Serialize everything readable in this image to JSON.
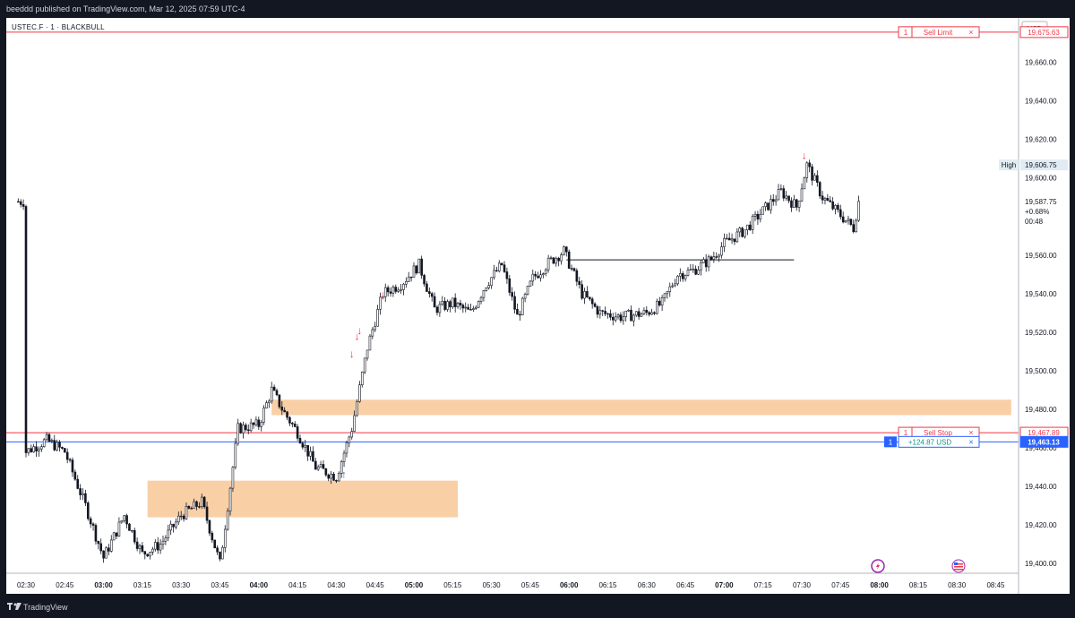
{
  "header": {
    "published": "beeddd published on TradingView.com, Mar 12, 2025 07:59 UTC-4"
  },
  "symbol": "USTEC.F · 1 · BLACKBULL",
  "currency": "USD",
  "footer": {
    "brand": "TradingView"
  },
  "colors": {
    "up": "#131722",
    "down": "#131722",
    "zone": "#f9cfa6",
    "sell_line": "#f23645",
    "position_line": "#2962ff",
    "marker_up": "#2962ff",
    "marker_down": "#f23645"
  },
  "chart_data": {
    "type": "candlestick",
    "title": "",
    "x_axis_ticks": [
      "02:30",
      "02:45",
      "03:00",
      "03:15",
      "03:30",
      "03:45",
      "04:00",
      "04:15",
      "04:30",
      "04:45",
      "05:00",
      "05:15",
      "05:30",
      "05:45",
      "06:00",
      "06:15",
      "06:30",
      "06:45",
      "07:00",
      "07:15",
      "07:30",
      "07:45",
      "08:00",
      "08:15",
      "08:30",
      "08:45"
    ],
    "x_axis_bold_ticks": [
      "03:00",
      "04:00",
      "05:00",
      "06:00",
      "07:00",
      "08:00"
    ],
    "y_axis_ticks": [
      "19,680.00",
      "19,660.00",
      "19,640.00",
      "19,620.00",
      "19,600.00",
      "19,580.00",
      "19,560.00",
      "19,540.00",
      "19,520.00",
      "19,500.00",
      "19,480.00",
      "19,460.00",
      "19,440.00",
      "19,420.00",
      "19,400.00"
    ],
    "ylim": [
      19395,
      19683
    ],
    "price_path": [
      [
        "02:30",
        19458
      ],
      [
        "02:38",
        19464
      ],
      [
        "02:45",
        19458
      ],
      [
        "02:53",
        19430
      ],
      [
        "03:00",
        19403
      ],
      [
        "03:08",
        19425
      ],
      [
        "03:15",
        19405
      ],
      [
        "03:22",
        19410
      ],
      [
        "03:30",
        19425
      ],
      [
        "03:38",
        19432
      ],
      [
        "03:45",
        19400
      ],
      [
        "03:52",
        19470
      ],
      [
        "04:00",
        19472
      ],
      [
        "04:05",
        19490
      ],
      [
        "04:10",
        19478
      ],
      [
        "04:15",
        19468
      ],
      [
        "04:22",
        19450
      ],
      [
        "04:30",
        19445
      ],
      [
        "04:36",
        19470
      ],
      [
        "04:42",
        19512
      ],
      [
        "04:48",
        19540
      ],
      [
        "04:55",
        19545
      ],
      [
        "05:02",
        19555
      ],
      [
        "05:08",
        19532
      ],
      [
        "05:15",
        19535
      ],
      [
        "05:22",
        19530
      ],
      [
        "05:28",
        19545
      ],
      [
        "05:34",
        19555
      ],
      [
        "05:40",
        19528
      ],
      [
        "05:46",
        19548
      ],
      [
        "05:52",
        19556
      ],
      [
        "05:58",
        19562
      ],
      [
        "06:05",
        19540
      ],
      [
        "06:12",
        19530
      ],
      [
        "06:20",
        19528
      ],
      [
        "06:30",
        19530
      ],
      [
        "06:36",
        19535
      ],
      [
        "06:42",
        19550
      ],
      [
        "06:48",
        19552
      ],
      [
        "06:55",
        19558
      ],
      [
        "07:00",
        19566
      ],
      [
        "07:08",
        19573
      ],
      [
        "07:15",
        19583
      ],
      [
        "07:22",
        19593
      ],
      [
        "07:28",
        19585
      ],
      [
        "07:32",
        19606.75
      ],
      [
        "07:38",
        19590
      ],
      [
        "07:44",
        19582
      ],
      [
        "07:50",
        19574
      ],
      [
        "07:52",
        19587.75
      ]
    ],
    "horizontal_lines": [
      {
        "name": "sell-limit",
        "price": 19675.63,
        "label_qty": "1",
        "label_text": "Sell Limit",
        "price_label": "19,675.63"
      },
      {
        "name": "sell-stop",
        "price": 19467.89,
        "label_qty": "1",
        "label_text": "Sell Stop",
        "price_label": "19,467.89"
      },
      {
        "name": "position",
        "price": 19463.13,
        "label_qty": "1",
        "label_text": "+124.87 USD",
        "price_label": "19,463.13"
      },
      {
        "name": "resistance",
        "price": 19557.5,
        "from": "05:59",
        "to": "07:27"
      }
    ],
    "zones": [
      {
        "name": "upper-zone",
        "from": "04:05",
        "to": "08:51",
        "price_top": 19485,
        "price_bottom": 19477
      },
      {
        "name": "lower-zone",
        "from": "03:17",
        "to": "05:17",
        "price_top": 19443,
        "price_bottom": 19424
      }
    ],
    "markers": [
      {
        "type": "down",
        "time": "04:36",
        "price": 19506
      },
      {
        "type": "down",
        "time": "04:38",
        "price": 19515
      },
      {
        "type": "down",
        "time": "04:39",
        "price": 19518
      },
      {
        "type": "down",
        "time": "04:48",
        "price": 19537
      },
      {
        "type": "up",
        "time": "04:33",
        "price": 19452
      },
      {
        "type": "down",
        "time": "07:31",
        "price": 19609
      }
    ],
    "annotations": {
      "high_label": "High",
      "high_price": "19,606.75",
      "last_price": "19,587.75",
      "last_change": "+0.68%",
      "countdown": "00:48"
    },
    "grid": false
  }
}
